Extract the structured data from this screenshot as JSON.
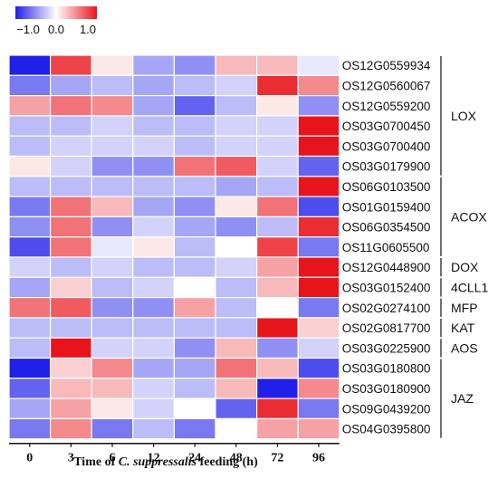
{
  "chart_data": {
    "type": "heatmap",
    "x_ticks": [
      "0",
      "3",
      "6",
      "12",
      "24",
      "48",
      "72",
      "96"
    ],
    "xlabel_parts": [
      "Time of ",
      "C. suppressalis",
      " feeding (h)"
    ],
    "rows": [
      "OS12G0559934",
      "OS12G0560067",
      "OS12G0559200",
      "OS03G0700450",
      "OS03G0700400",
      "OS03G0179900",
      "OS06G0103500",
      "OS01G0159400",
      "OS06G0354500",
      "OS11G0605500",
      "OS12G0448900",
      "OS03G0152400",
      "OS02G0274100",
      "OS02G0817700",
      "OS03G0225900",
      "OS03G0180800",
      "OS03G0180900",
      "OS09G0439200",
      "OS04G0395800"
    ],
    "groups": [
      {
        "label": "LOX",
        "first": 0,
        "last": 5
      },
      {
        "label": "ACOX",
        "first": 6,
        "last": 9
      },
      {
        "label": "DOX",
        "first": 10,
        "last": 10
      },
      {
        "label": "4CLL1",
        "first": 11,
        "last": 11
      },
      {
        "label": "MFP",
        "first": 12,
        "last": 12
      },
      {
        "label": "KAT",
        "first": 13,
        "last": 13
      },
      {
        "label": "AOS",
        "first": 14,
        "last": 14
      },
      {
        "label": "JAZ",
        "first": 15,
        "last": 18
      }
    ],
    "values": [
      [
        -1.0,
        0.8,
        0.1,
        -0.4,
        -0.5,
        0.3,
        0.3,
        -0.1
      ],
      [
        -0.6,
        -0.4,
        -0.3,
        -0.4,
        -0.3,
        -0.2,
        0.9,
        0.5
      ],
      [
        0.4,
        0.6,
        0.5,
        -0.4,
        -0.7,
        -0.3,
        0.1,
        -0.5
      ],
      [
        -0.3,
        -0.3,
        -0.2,
        -0.3,
        -0.3,
        -0.2,
        -0.2,
        1.0
      ],
      [
        -0.3,
        -0.2,
        -0.2,
        -0.2,
        -0.3,
        -0.2,
        -0.2,
        1.0
      ],
      [
        0.1,
        -0.2,
        -0.5,
        -0.5,
        0.6,
        0.7,
        -0.2,
        -0.7
      ],
      [
        -0.3,
        -0.3,
        -0.3,
        -0.3,
        -0.3,
        -0.4,
        -0.3,
        1.0
      ],
      [
        -0.6,
        0.6,
        0.3,
        -0.4,
        -0.5,
        0.1,
        0.6,
        -0.8
      ],
      [
        -0.5,
        0.6,
        -0.5,
        -0.2,
        -0.4,
        -0.5,
        -0.3,
        0.9
      ],
      [
        -0.8,
        0.6,
        -0.1,
        0.1,
        -0.3,
        0.0,
        0.8,
        -0.6
      ],
      [
        -0.2,
        -0.3,
        -0.2,
        -0.3,
        -0.3,
        -0.2,
        0.4,
        1.0
      ],
      [
        -0.4,
        0.2,
        -0.3,
        -0.2,
        0.0,
        -0.3,
        0.3,
        1.0
      ],
      [
        0.6,
        0.7,
        -0.5,
        -0.5,
        0.4,
        -0.3,
        0.0,
        -0.6
      ],
      [
        -0.3,
        -0.3,
        -0.3,
        -0.3,
        -0.3,
        -0.3,
        1.0,
        0.2
      ],
      [
        -0.3,
        1.0,
        -0.2,
        -0.2,
        -0.5,
        0.3,
        -0.5,
        -0.2
      ],
      [
        -1.0,
        0.2,
        0.5,
        -0.4,
        -0.4,
        0.6,
        0.3,
        -0.8
      ],
      [
        -0.7,
        0.3,
        0.3,
        -0.2,
        -0.3,
        0.3,
        -1.0,
        0.5
      ],
      [
        -0.4,
        0.4,
        0.1,
        -0.2,
        0.0,
        -0.7,
        0.9,
        -0.6
      ],
      [
        -0.6,
        0.5,
        -0.6,
        -0.3,
        -0.6,
        0.0,
        0.4,
        0.4
      ]
    ],
    "color_scale": {
      "min": -1.0,
      "mid": 0.0,
      "max": 1.0,
      "low_color": "#2020e8",
      "mid_color": "#ffffff",
      "high_color": "#e8141c"
    },
    "legend_ticks": [
      "−1.0",
      "0.0",
      "1.0"
    ],
    "legend_placement": "top-left",
    "grid": true
  }
}
